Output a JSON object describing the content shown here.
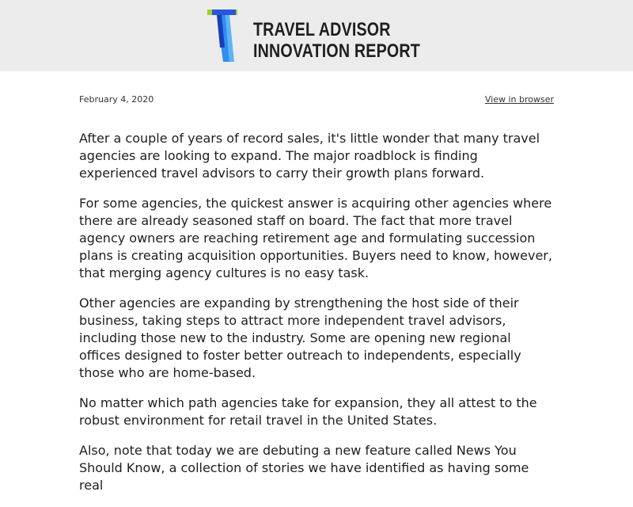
{
  "header": {
    "logo_line1": "TRAVEL ADVISOR",
    "logo_line2": "INNOVATION REPORT",
    "logo_mark_icon": "t-logo-icon",
    "colors": {
      "header_bg": "#ececec",
      "logo_blue": "#2f8ef0",
      "logo_green": "#9fd12a",
      "logo_dark": "#1a3db8"
    }
  },
  "meta": {
    "date": "February 4, 2020",
    "view_in_browser": "View in browser"
  },
  "body": {
    "paragraphs": [
      "After a couple of years of record sales, it's little wonder that many travel agencies are looking to expand. The major roadblock is finding experienced travel advisors to carry their growth plans forward.",
      "For some agencies, the quickest answer is acquiring other agencies where there are already seasoned staff on board. The fact that more travel agency owners are reaching retirement age and formulating succession plans is creating acquisition opportunities. Buyers need to know, however, that merging agency cultures is no easy task.",
      "Other agencies are expanding by strengthening the host side of their business, taking steps to attract more independent travel advisors, including those new to the industry. Some are opening new regional offices designed to foster better outreach to independents, especially those who are home-based.",
      "No matter which path agencies take for expansion, they all attest to the robust environment for retail travel in the United States.",
      "Also, note that today we are debuting a new feature called News You Should Know, a collection of stories we have identified as having some real"
    ]
  }
}
